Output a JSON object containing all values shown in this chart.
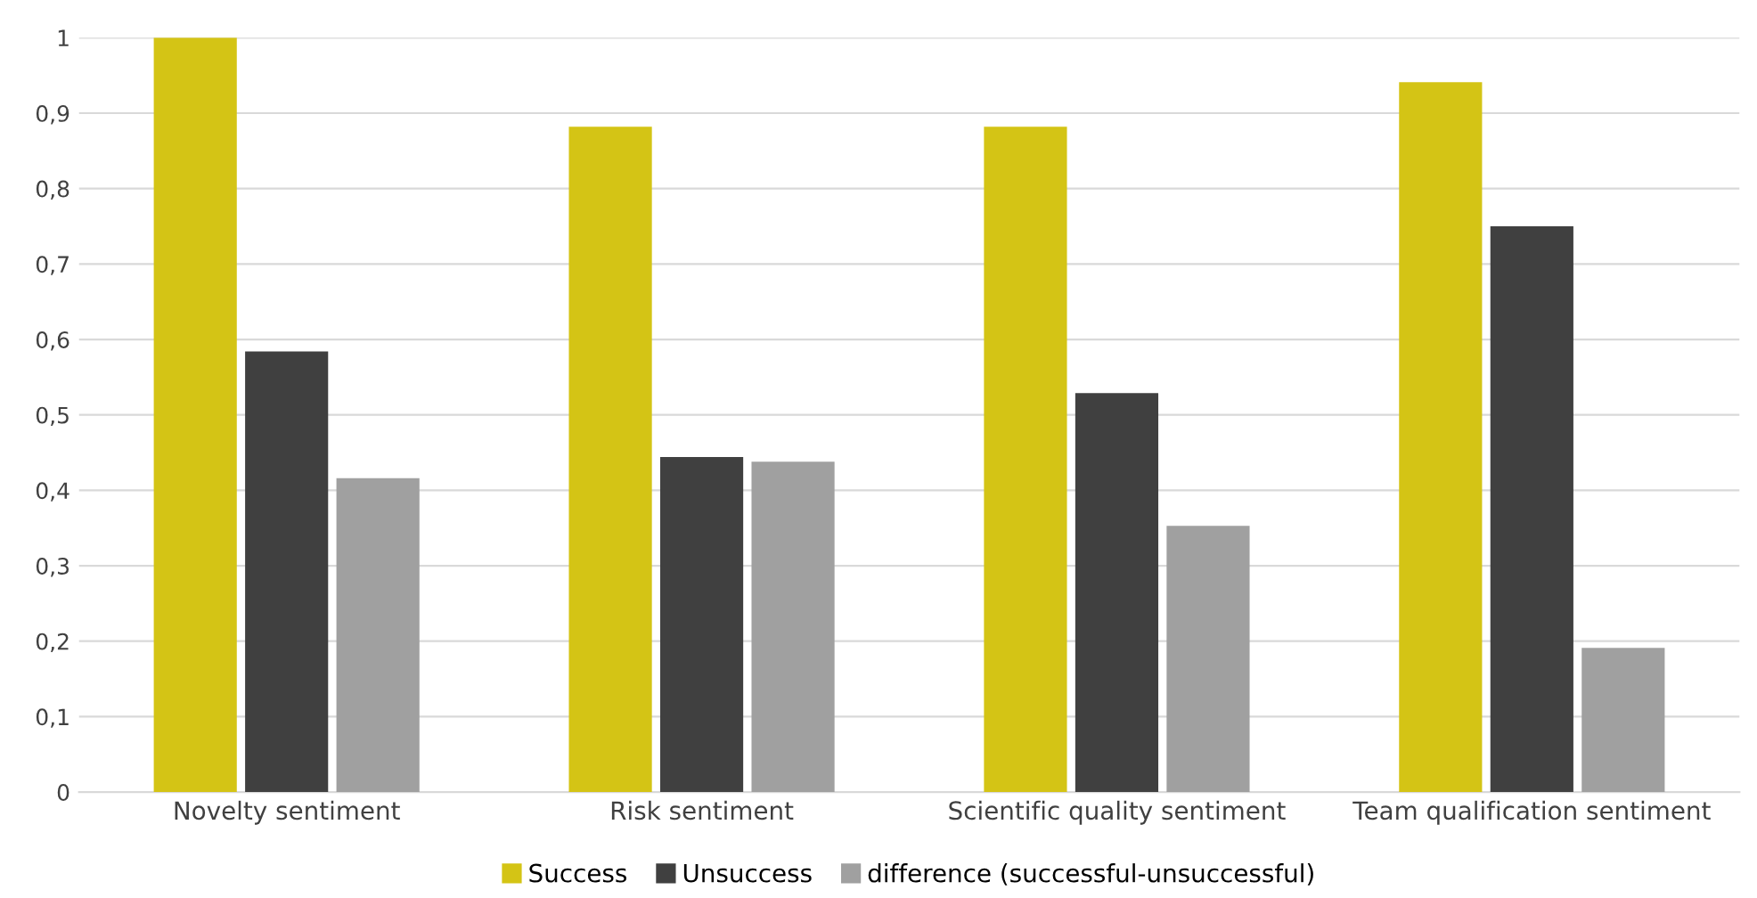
{
  "chart_data": {
    "type": "bar",
    "categories": [
      "Novelty sentiment",
      "Risk sentiment",
      "Scientific quality sentiment",
      "Team qualification sentiment"
    ],
    "series": [
      {
        "name": "Success",
        "color": "#d4c415",
        "values": [
          1.0,
          0.882,
          0.882,
          0.941
        ]
      },
      {
        "name": "Unsuccess",
        "color": "#404040",
        "values": [
          0.584,
          0.444,
          0.529,
          0.75
        ]
      },
      {
        "name": "difference (successful-unsuccessful)",
        "color": "#a0a0a0",
        "values": [
          0.416,
          0.438,
          0.353,
          0.191
        ]
      }
    ],
    "ylim": [
      0,
      1
    ],
    "yticks": [
      0,
      {
        "value": 0.1,
        "label": "0,1"
      },
      {
        "value": 0.2,
        "label": "0,2"
      },
      {
        "value": 0.3,
        "label": "0,3"
      },
      {
        "value": 0.4,
        "label": "0,4"
      },
      {
        "value": 0.5,
        "label": "0,5"
      },
      {
        "value": 0.6,
        "label": "0,6"
      },
      {
        "value": 0.7,
        "label": "0,7"
      },
      {
        "value": 0.8,
        "label": "0,8"
      },
      {
        "value": 0.9,
        "label": "0,9"
      },
      1
    ],
    "grid": "y",
    "legend": "bottom"
  }
}
